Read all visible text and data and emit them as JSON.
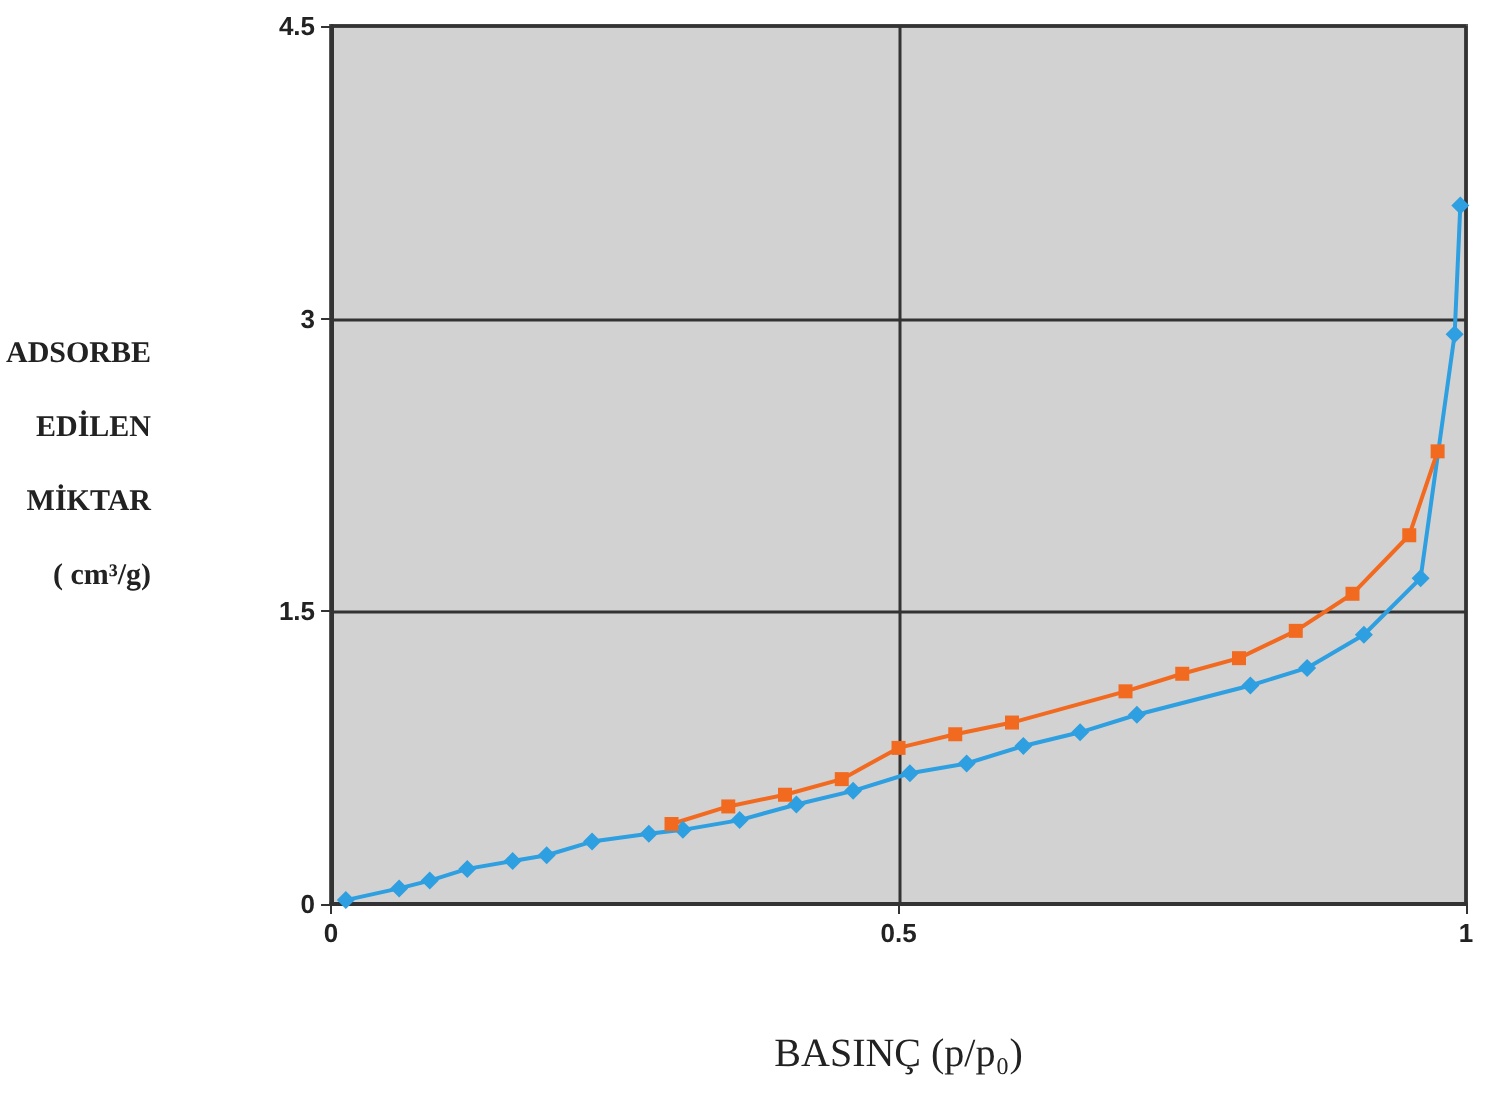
{
  "chart_data": {
    "type": "line",
    "xlabel": "BASINÇ (p/p₀)",
    "ylabel": "ADSORBE\nEDİLEN\nMİKTAR\n( cm³/g)",
    "xlim": [
      0,
      1
    ],
    "xticks": [
      0,
      0.5,
      1
    ],
    "ylim": [
      0,
      4.5
    ],
    "yticks": [
      0,
      1.5,
      3,
      4.5
    ],
    "grid": true,
    "series": [
      {
        "color": "#2e9fe0",
        "marker": "diamond",
        "x": [
          0.013,
          0.06,
          0.087,
          0.12,
          0.16,
          0.19,
          0.23,
          0.28,
          0.31,
          0.36,
          0.41,
          0.46,
          0.51,
          0.56,
          0.61,
          0.66,
          0.71,
          0.81,
          0.86,
          0.91,
          0.96,
          0.99,
          0.995
        ],
        "values": [
          0.02,
          0.08,
          0.12,
          0.18,
          0.22,
          0.25,
          0.32,
          0.36,
          0.38,
          0.43,
          0.51,
          0.58,
          0.67,
          0.72,
          0.81,
          0.88,
          0.97,
          1.12,
          1.21,
          1.38,
          1.67,
          2.92,
          3.58
        ]
      },
      {
        "color": "#f26a1f",
        "marker": "square",
        "x": [
          0.3,
          0.35,
          0.4,
          0.45,
          0.5,
          0.55,
          0.6,
          0.7,
          0.75,
          0.8,
          0.85,
          0.9,
          0.95,
          0.975
        ],
        "values": [
          0.41,
          0.5,
          0.56,
          0.64,
          0.8,
          0.87,
          0.93,
          1.09,
          1.18,
          1.26,
          1.4,
          1.59,
          1.89,
          2.32
        ]
      }
    ]
  }
}
